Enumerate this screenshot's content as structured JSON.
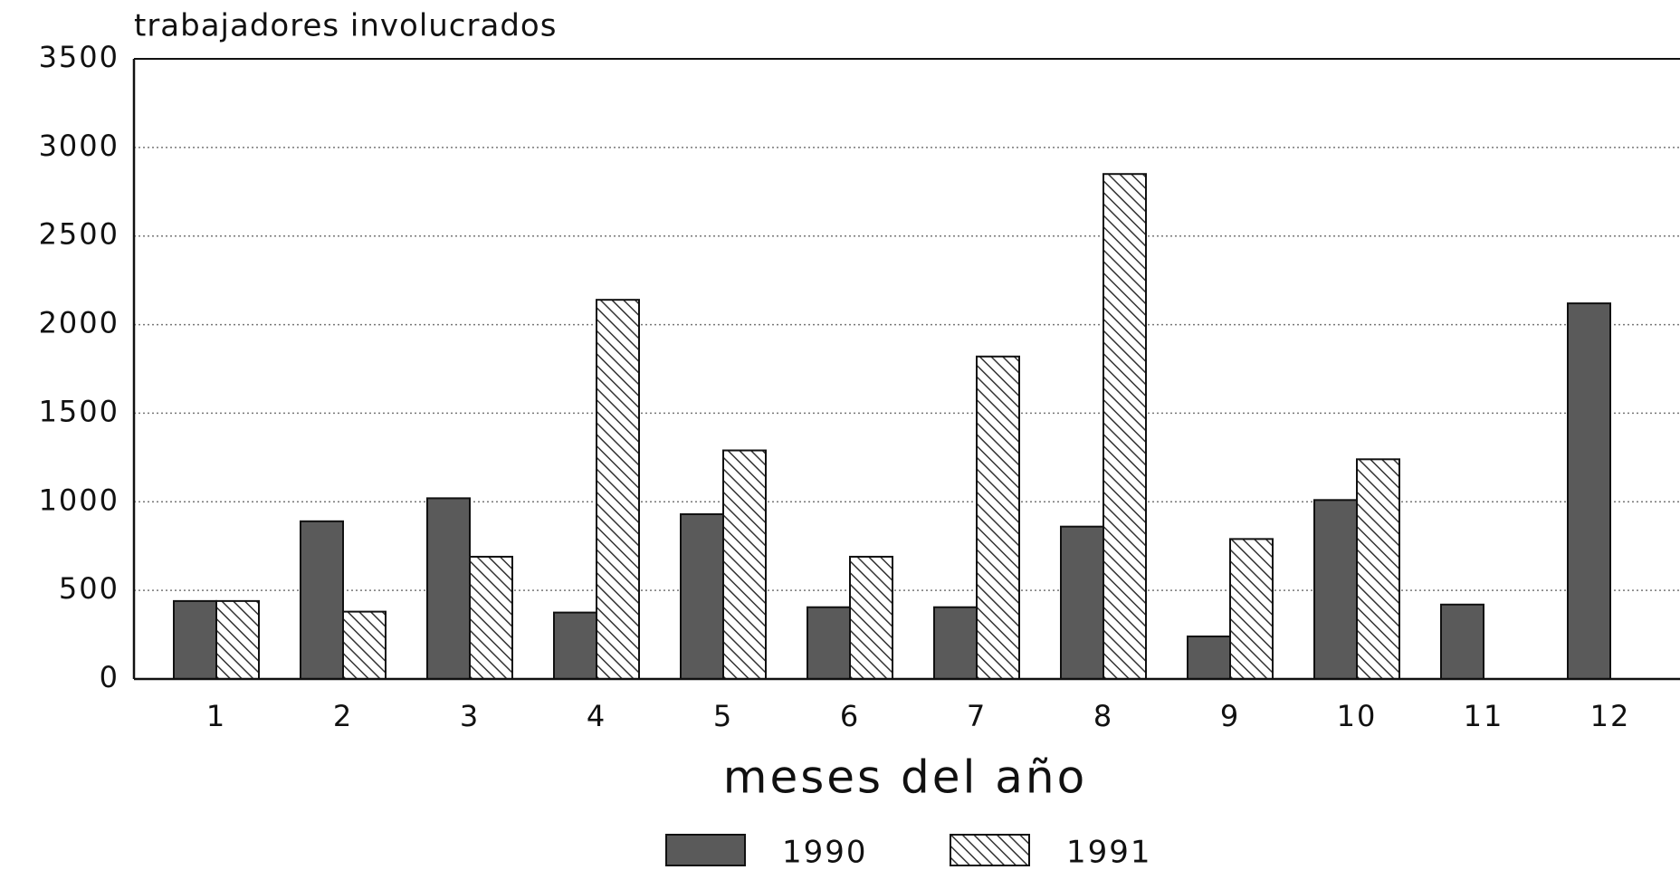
{
  "chart_data": {
    "type": "bar",
    "title": "trabajadores involucrados",
    "x_label": "meses del año",
    "categories": [
      "1",
      "2",
      "3",
      "4",
      "5",
      "6",
      "7",
      "8",
      "9",
      "10",
      "11",
      "12"
    ],
    "series": [
      {
        "name": "1990",
        "color": "#5a5a5a",
        "hatch": false,
        "values": [
          440,
          890,
          1020,
          375,
          930,
          405,
          405,
          860,
          240,
          1010,
          420,
          2120
        ]
      },
      {
        "name": "1991",
        "color": "#333333",
        "hatch": true,
        "values": [
          440,
          380,
          690,
          2140,
          1290,
          690,
          1820,
          2850,
          790,
          1240,
          null,
          null
        ]
      }
    ],
    "ylim": [
      0,
      3500
    ],
    "yticks": [
      0,
      500,
      1000,
      1500,
      2000,
      2500,
      3000,
      3500
    ],
    "grid": true,
    "legend": "bottom"
  }
}
